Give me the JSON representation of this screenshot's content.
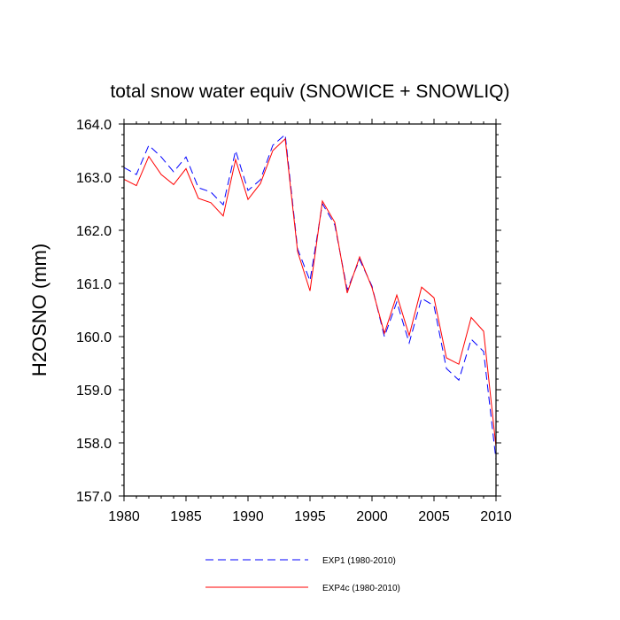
{
  "chart_data": {
    "type": "line",
    "title": "total snow water equiv (SNOWICE + SNOWLIQ)",
    "xlabel": "",
    "ylabel": "H2OSNO  (mm)",
    "xlim": [
      1980,
      2010
    ],
    "ylim": [
      157.0,
      164.0
    ],
    "x_ticks": [
      1980,
      1985,
      1990,
      1995,
      2000,
      2005,
      2010
    ],
    "x_tick_labels": [
      "1980",
      "1985",
      "1990",
      "1995",
      "2000",
      "2005",
      "2010"
    ],
    "y_ticks": [
      157.0,
      158.0,
      159.0,
      160.0,
      161.0,
      162.0,
      163.0,
      164.0
    ],
    "y_tick_labels": [
      "157.0",
      "158.0",
      "159.0",
      "160.0",
      "161.0",
      "162.0",
      "163.0",
      "164.0"
    ],
    "grid": false,
    "legend_position": "bottom",
    "x": [
      1980,
      1981,
      1982,
      1983,
      1984,
      1985,
      1986,
      1987,
      1988,
      1989,
      1990,
      1991,
      1992,
      1993,
      1994,
      1995,
      1996,
      1997,
      1998,
      1999,
      2000,
      2001,
      2002,
      2003,
      2004,
      2005,
      2006,
      2007,
      2008,
      2009,
      2010
    ],
    "series": [
      {
        "name": "EXP1 (1980-2010)",
        "color": "#0000ff",
        "style": "dashed",
        "values": [
          163.18,
          163.05,
          163.6,
          163.38,
          163.1,
          163.38,
          162.8,
          162.72,
          162.48,
          163.5,
          162.75,
          162.95,
          163.6,
          163.8,
          161.65,
          161.05,
          162.5,
          162.1,
          160.88,
          161.45,
          160.95,
          160.0,
          160.65,
          159.88,
          160.72,
          160.58,
          159.4,
          159.18,
          159.95,
          159.72,
          157.68
        ]
      },
      {
        "name": "EXP4c (1980-2010)",
        "color": "#ff0000",
        "style": "solid",
        "values": [
          162.96,
          162.84,
          163.39,
          163.05,
          162.86,
          163.16,
          162.6,
          162.52,
          162.27,
          163.33,
          162.58,
          162.88,
          163.5,
          163.72,
          161.6,
          160.86,
          162.55,
          162.15,
          160.82,
          161.5,
          160.92,
          160.06,
          160.78,
          160.02,
          160.93,
          160.73,
          159.6,
          159.48,
          160.36,
          160.1,
          157.93
        ]
      }
    ]
  }
}
